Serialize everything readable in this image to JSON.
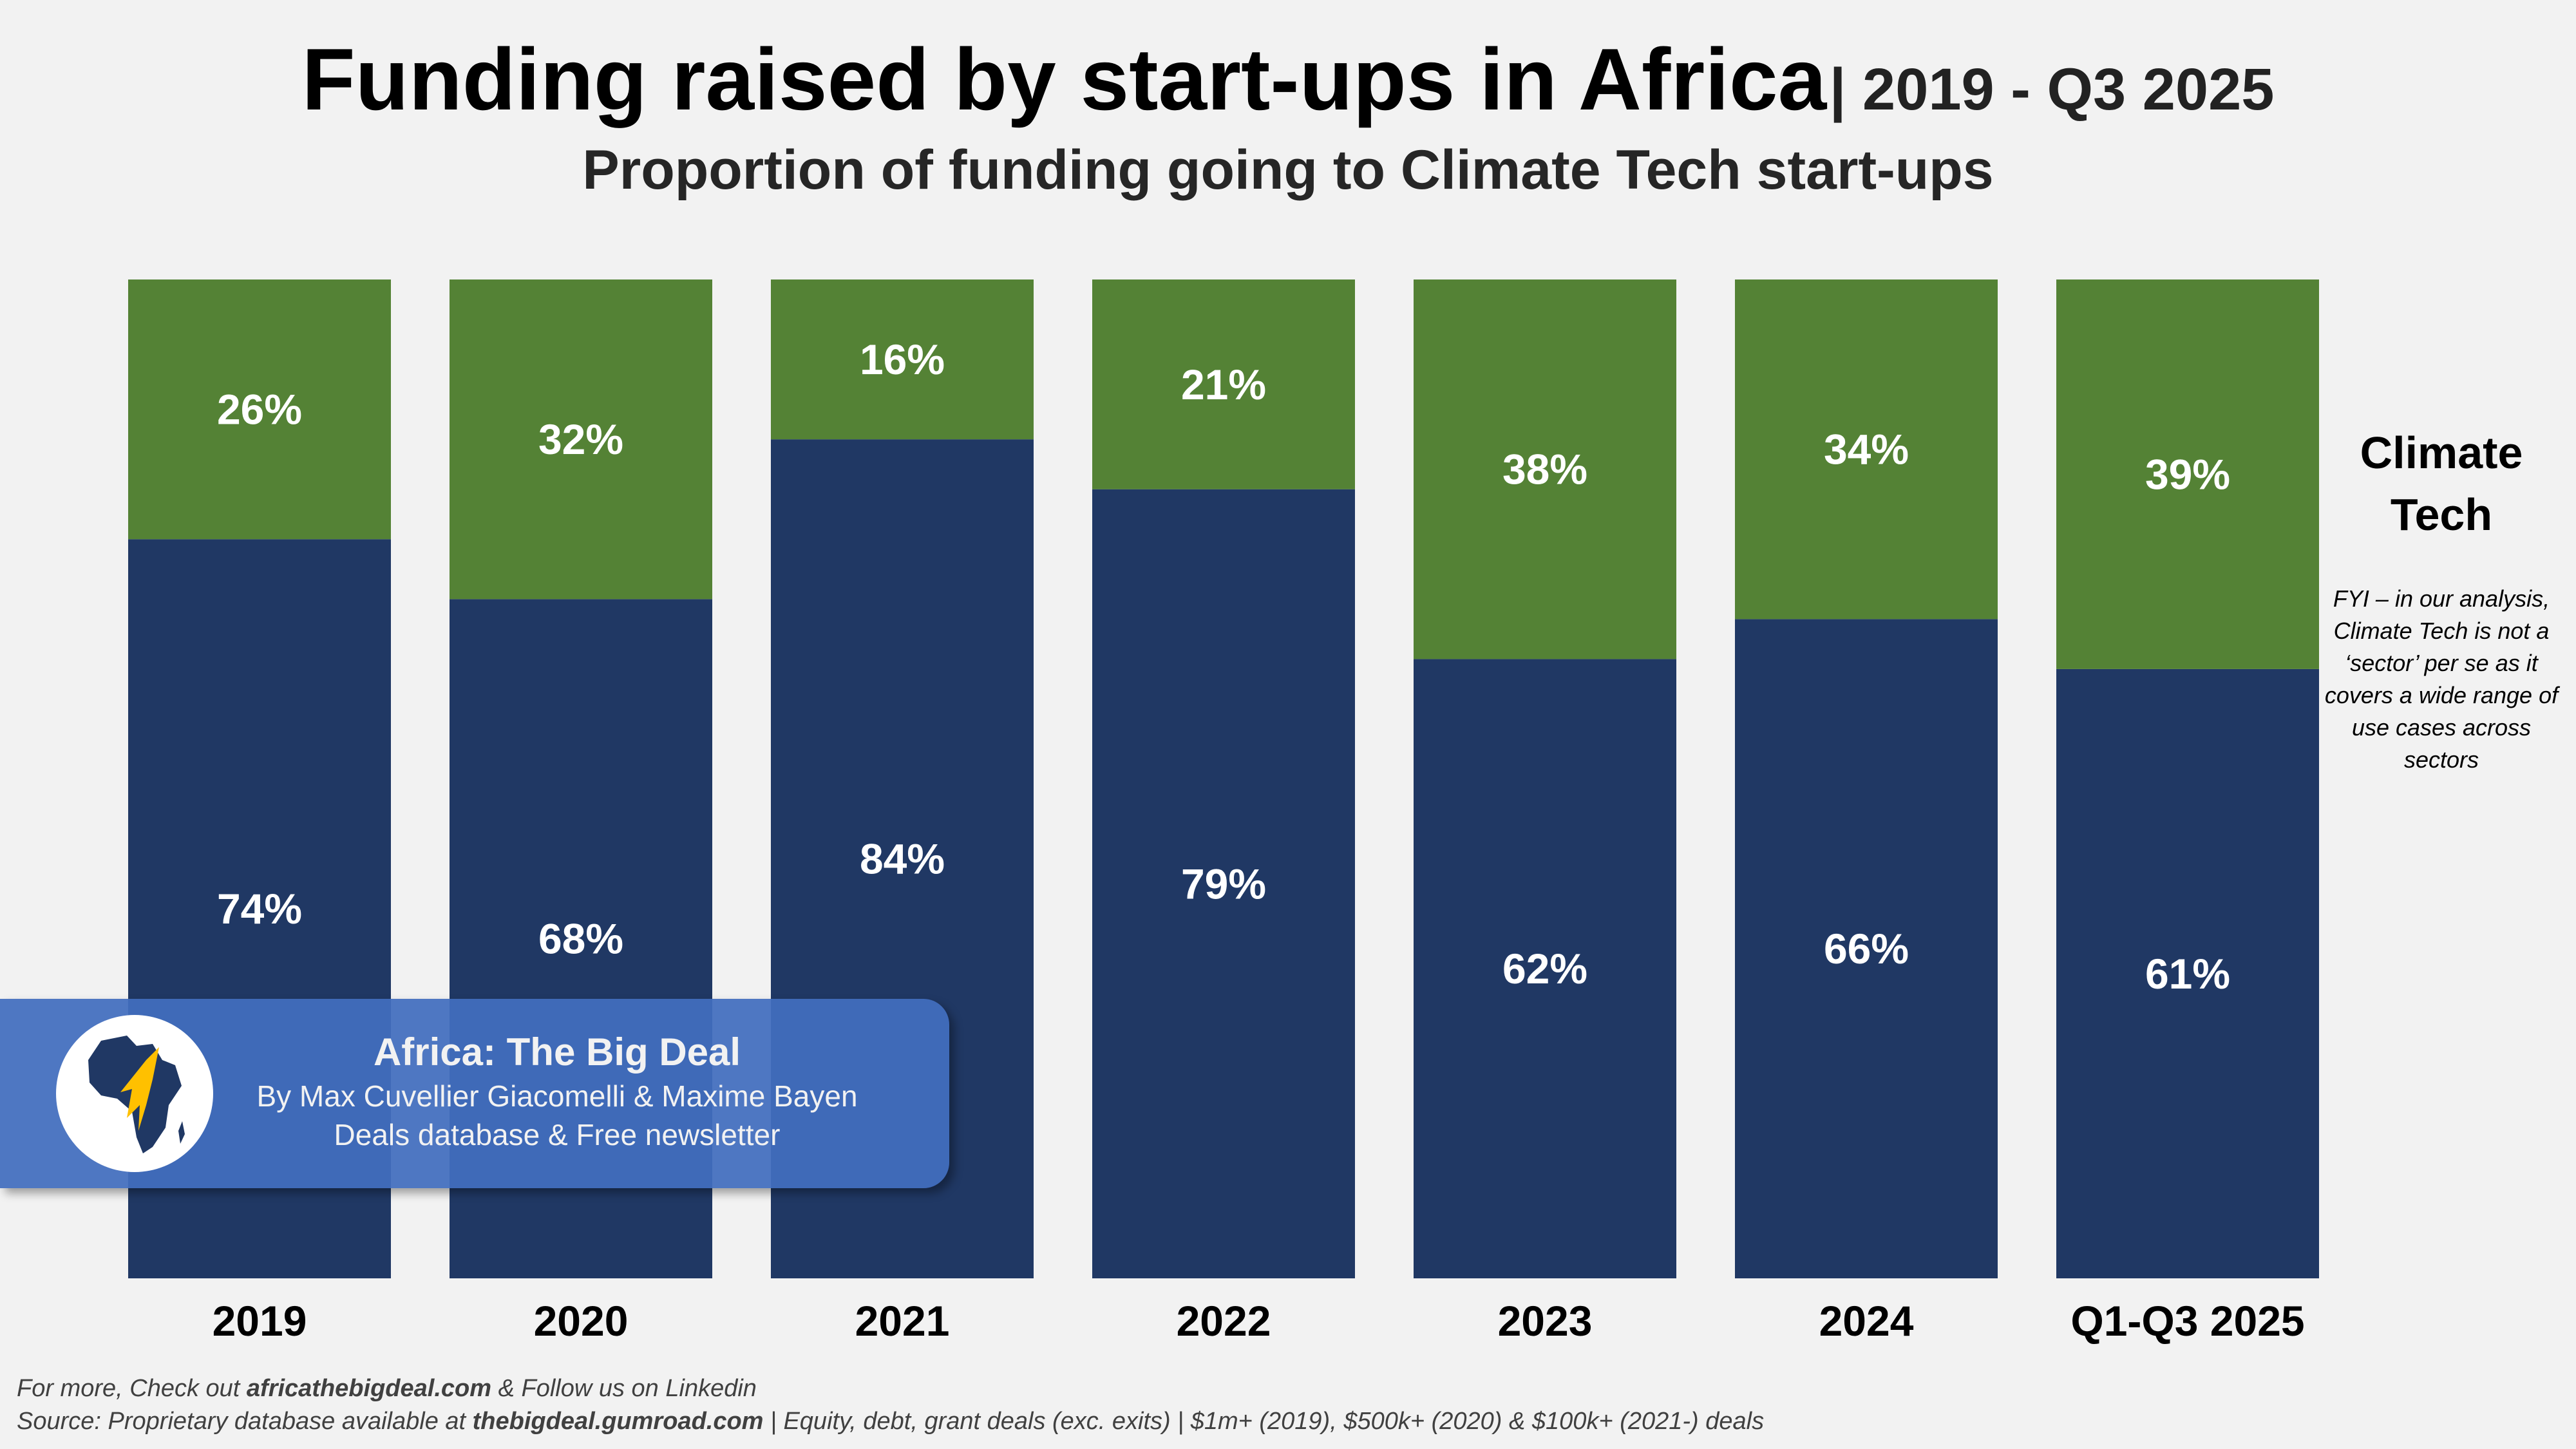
{
  "header": {
    "title": "Funding raised by start-ups in Africa",
    "title_suffix": "| 2019 - Q3 2025",
    "subtitle": "Proportion of funding going to Climate Tech start-ups"
  },
  "chart_data": {
    "type": "bar",
    "stacked": true,
    "normalized": true,
    "categories": [
      "2019",
      "2020",
      "2021",
      "2022",
      "2023",
      "2024",
      "Q1-Q3 2025"
    ],
    "series": [
      {
        "name": "",
        "values": [
          74,
          68,
          84,
          79,
          62,
          66,
          61
        ],
        "color": "#203864"
      },
      {
        "name": "Climate Tech",
        "values": [
          26,
          32,
          16,
          21,
          38,
          34,
          39
        ],
        "color": "#548235"
      }
    ],
    "ylim": [
      0,
      100
    ],
    "data_label_suffix": "%",
    "grid": false,
    "legend": "right"
  },
  "legend": {
    "label": "Climate Tech",
    "note": "FYI – in our analysis, Climate Tech is not a ‘sector’ per se as it covers a wide range of use cases across sectors"
  },
  "banner": {
    "title": "Africa: The Big Deal",
    "line1": "By Max Cuvellier Giacomelli & Maxime Bayen",
    "line2": "Deals database & Free newsletter"
  },
  "footer": {
    "line1_pre": "For more, Check out ",
    "line1_link": "africathebigdeal.com",
    "line1_post": " & Follow us on Linkedin",
    "line2_pre": "Source: Proprietary database available at ",
    "line2_link": "thebigdeal.gumroad.com",
    "line2_post": " | Equity, debt, grant deals (exc. exits) | $1m+ (2019), $500k+ (2020) & $100k+ (2021-) deals"
  }
}
